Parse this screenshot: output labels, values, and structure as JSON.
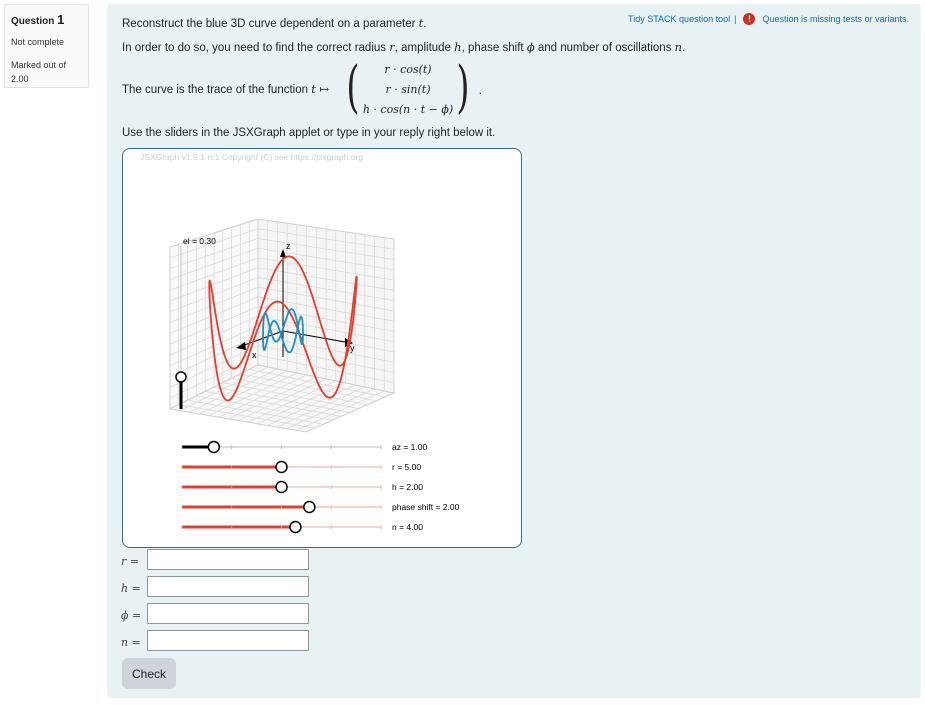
{
  "question": {
    "label": "Question",
    "number": "1",
    "state": "Not complete",
    "grade_label": "Marked out of",
    "grade_value": "2.00"
  },
  "toplinks": {
    "tidy": "Tidy STACK question tool",
    "separator": "|",
    "alert_glyph": "!",
    "warning": "Question is missing tests or variants."
  },
  "text": {
    "line1_pre": "Reconstruct the blue 3D curve dependent on a parameter ",
    "line1_var": "t",
    "line1_post": ".",
    "line2_a": "In order to do so, you need to find the correct radius ",
    "line2_r": "r",
    "line2_b": ", amplitude ",
    "line2_h": "h",
    "line2_c": ", phase shift ",
    "line2_phi": "ϕ",
    "line2_d": " and number of oscillations ",
    "line2_n": "n",
    "line2_e": ".",
    "line3_pre": "The curve is the trace of the function ",
    "line3_t": "t ↦",
    "vec_row1": "r · cos(t)",
    "vec_row2": "r · sin(t)",
    "vec_row3": "h · cos(n · t − ϕ)",
    "vec_end": ".",
    "line4": "Use the sliders in the JSXGraph applet or type in your reply right below it."
  },
  "board": {
    "copyright": "JSXGraph v1.5.1-rc1 Copyright (C) see https://jsxgraph.org",
    "el_label": "el = 0.30",
    "axis_z": "z",
    "axis_x": "x",
    "axis_y": "y",
    "el_value": 0.3,
    "sliders": [
      {
        "label": "az = 1.00",
        "fraction": 0.16,
        "color": "#000000"
      },
      {
        "label": "r = 5.00",
        "fraction": 0.5,
        "color": "#e53e2c"
      },
      {
        "label": "h = 2.00",
        "fraction": 0.5,
        "color": "#e53e2c"
      },
      {
        "label": "phase shift = 2.00",
        "fraction": 0.64,
        "color": "#e53e2c"
      },
      {
        "label": "n = 4.00",
        "fraction": 0.57,
        "color": "#e53e2c"
      }
    ],
    "curve_colors": {
      "blue": "#1f8fc4",
      "red": "#e53e2c"
    }
  },
  "answers": [
    {
      "var": "r",
      "eq": "=",
      "value": ""
    },
    {
      "var": "h",
      "eq": "=",
      "value": ""
    },
    {
      "var": "ϕ",
      "eq": "=",
      "value": ""
    },
    {
      "var": "n",
      "eq": "=",
      "value": ""
    }
  ],
  "check_label": "Check"
}
